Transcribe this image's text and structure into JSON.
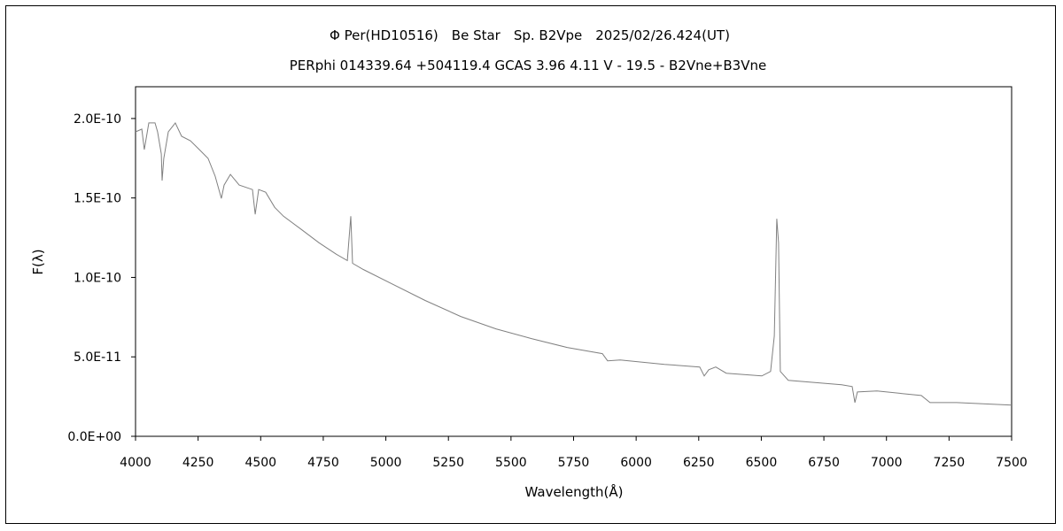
{
  "chart_data": {
    "type": "line",
    "title": "Φ Per(HD10516)　Be Star　Sp. B2Vpe　2025/02/26.424(UT)",
    "subtitle": "PERphi 014339.64 +504119.4 GCAS 3.96 4.11 V - 19.5 - B2Vne+B3Vne",
    "xlabel": "Wavelength(Å)",
    "ylabel": "F(λ)",
    "xlim": [
      4000,
      7500
    ],
    "ylim": [
      0,
      2.2e-10
    ],
    "xticks": [
      4000,
      4250,
      4500,
      4750,
      5000,
      5250,
      5500,
      5750,
      6000,
      6250,
      6500,
      6750,
      7000,
      7250,
      7500
    ],
    "xtick_labels": [
      "4000",
      "4250",
      "4500",
      "4750",
      "5000",
      "5250",
      "5500",
      "5750",
      "6000",
      "6250",
      "6500",
      "6750",
      "7000",
      "7250",
      "7500"
    ],
    "yticks": [
      0,
      5e-11,
      1e-10,
      1.5e-10,
      2e-10
    ],
    "ytick_labels": [
      "0.0E+00",
      "5.0E-11",
      "1.0E-10",
      "1.5E-10",
      "2.0E-10"
    ],
    "grid": false,
    "line_color": "#808080",
    "series": [
      {
        "name": "spectrum",
        "x": [
          4000,
          4025,
          4035,
          4053,
          4078,
          4088,
          4103,
          4106,
          4113,
          4131,
          4159,
          4184,
          4219,
          4255,
          4290,
          4318,
          4343,
          4354,
          4379,
          4414,
          4467,
          4478,
          4492,
          4520,
          4556,
          4591,
          4662,
          4733,
          4803,
          4846,
          4860,
          4867,
          4910,
          5016,
          5157,
          5299,
          5440,
          5582,
          5724,
          5865,
          5886,
          5936,
          6113,
          6254,
          6272,
          6290,
          6318,
          6360,
          6502,
          6537,
          6552,
          6562,
          6569,
          6576,
          6608,
          6821,
          6863,
          6874,
          6884,
          6962,
          7139,
          7174,
          7281,
          7500
        ],
        "y": [
          1.916e-10,
          1.933e-10,
          1.804e-10,
          1.972e-10,
          1.972e-10,
          1.916e-10,
          1.777e-10,
          1.609e-10,
          1.749e-10,
          1.916e-10,
          1.972e-10,
          1.888e-10,
          1.86e-10,
          1.804e-10,
          1.749e-10,
          1.637e-10,
          1.497e-10,
          1.581e-10,
          1.648e-10,
          1.581e-10,
          1.553e-10,
          1.397e-10,
          1.553e-10,
          1.536e-10,
          1.441e-10,
          1.385e-10,
          1.302e-10,
          1.218e-10,
          1.145e-10,
          1.106e-10,
          1.385e-10,
          1.089e-10,
          1.05e-10,
          9.66e-11,
          8.55e-11,
          7.54e-11,
          6.76e-11,
          6.15e-11,
          5.59e-11,
          5.2e-11,
          4.75e-11,
          4.8e-11,
          4.53e-11,
          4.36e-11,
          3.8e-11,
          4.19e-11,
          4.36e-11,
          3.97e-11,
          3.8e-11,
          4.08e-11,
          6.31e-11,
          1.369e-10,
          1.218e-10,
          4.08e-11,
          3.52e-11,
          3.24e-11,
          3.13e-11,
          2.12e-11,
          2.79e-11,
          2.85e-11,
          2.57e-11,
          2.12e-11,
          2.12e-11,
          1.96e-11
        ]
      }
    ]
  }
}
